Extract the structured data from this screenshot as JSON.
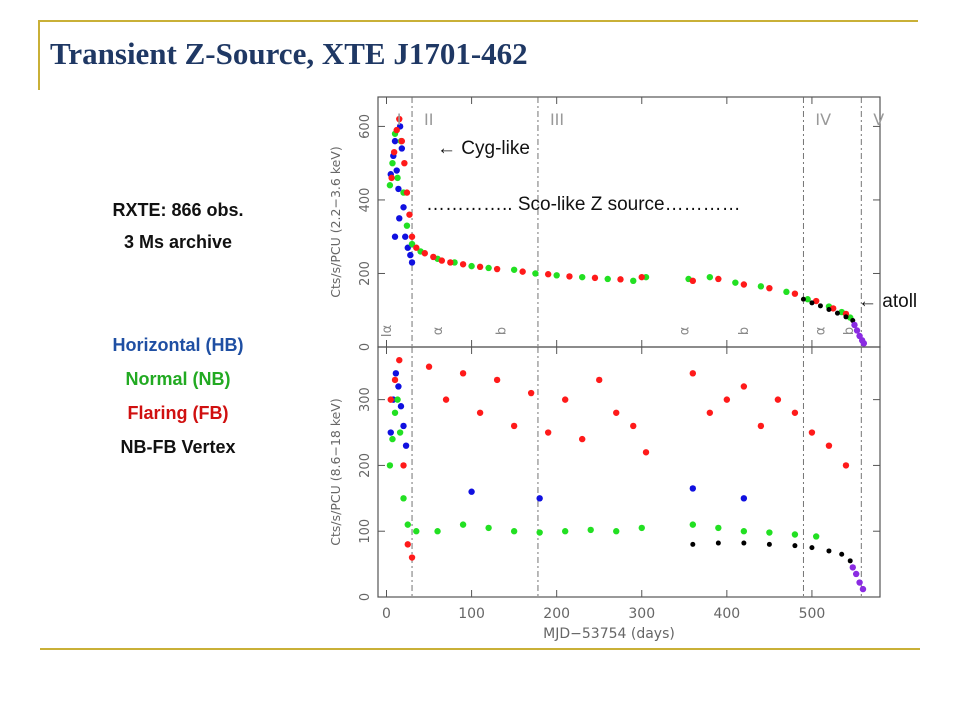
{
  "slide": {
    "title": "Transient Z-Source, XTE J1701-462",
    "obs_line": "RXTE:  866 obs.",
    "archive_line": "3 Ms archive",
    "legend": [
      {
        "label": "Horizontal (HB)",
        "color": "#1f4fa3"
      },
      {
        "label": "Normal (NB)",
        "color": "#22aa22"
      },
      {
        "label": "Flaring (FB)",
        "color": "#d01010"
      },
      {
        "label": "NB-FB Vertex",
        "color": "#111111"
      }
    ],
    "annotations": {
      "cyg": "← Cyg-like",
      "sco": "………….. Sco-like Z source…………",
      "atoll": "← atoll"
    }
  },
  "chart_data": {
    "type": "scatter",
    "xlabel": "MJD−53754 (days)",
    "xlim": [
      -10,
      580
    ],
    "xticks": [
      0,
      100,
      200,
      300,
      400,
      500
    ],
    "epoch_lines": [
      30,
      178,
      490,
      558
    ],
    "epoch_labels": [
      "I",
      "II",
      "III",
      "IV",
      "V"
    ],
    "marker_labels": [
      {
        "x": 5,
        "label": "Iα"
      },
      {
        "x": 65,
        "label": "α"
      },
      {
        "x": 140,
        "label": "b"
      },
      {
        "x": 355,
        "label": "α"
      },
      {
        "x": 425,
        "label": "b"
      },
      {
        "x": 515,
        "label": "α"
      },
      {
        "x": 548,
        "label": "b"
      }
    ],
    "state_colors": {
      "HB": "#1010e0",
      "NB": "#22e022",
      "FB": "#ff1a1a",
      "vertex": "#000000",
      "atoll": "#8a2be2"
    },
    "panels": [
      {
        "ylabel": "Cts/s/PCU (2.2−3.6 keV)",
        "ylim": [
          0,
          680
        ],
        "yticks": [
          0,
          200,
          400,
          600
        ],
        "series": [
          {
            "state": "HB",
            "points": [
              [
                5,
                470
              ],
              [
                8,
                520
              ],
              [
                10,
                560
              ],
              [
                12,
                480
              ],
              [
                14,
                430
              ],
              [
                16,
                600
              ],
              [
                18,
                540
              ],
              [
                20,
                380
              ],
              [
                22,
                300
              ],
              [
                25,
                270
              ],
              [
                28,
                250
              ],
              [
                30,
                230
              ],
              [
                10,
                300
              ],
              [
                15,
                350
              ]
            ]
          },
          {
            "state": "NB",
            "points": [
              [
                4,
                440
              ],
              [
                7,
                500
              ],
              [
                10,
                580
              ],
              [
                13,
                460
              ],
              [
                17,
                560
              ],
              [
                20,
                420
              ],
              [
                24,
                330
              ],
              [
                30,
                280
              ],
              [
                40,
                260
              ],
              [
                60,
                240
              ],
              [
                80,
                230
              ],
              [
                100,
                220
              ],
              [
                120,
                215
              ],
              [
                150,
                210
              ],
              [
                175,
                200
              ],
              [
                200,
                195
              ],
              [
                230,
                190
              ],
              [
                260,
                185
              ],
              [
                290,
                180
              ],
              [
                305,
                190
              ],
              [
                355,
                185
              ],
              [
                380,
                190
              ],
              [
                410,
                175
              ],
              [
                440,
                165
              ],
              [
                470,
                150
              ],
              [
                495,
                130
              ],
              [
                520,
                110
              ],
              [
                535,
                95
              ],
              [
                545,
                80
              ]
            ]
          },
          {
            "state": "FB",
            "points": [
              [
                6,
                460
              ],
              [
                9,
                530
              ],
              [
                12,
                590
              ],
              [
                15,
                620
              ],
              [
                18,
                560
              ],
              [
                21,
                500
              ],
              [
                24,
                420
              ],
              [
                27,
                360
              ],
              [
                30,
                300
              ],
              [
                35,
                270
              ],
              [
                45,
                255
              ],
              [
                55,
                245
              ],
              [
                65,
                235
              ],
              [
                75,
                230
              ],
              [
                90,
                225
              ],
              [
                110,
                218
              ],
              [
                130,
                212
              ],
              [
                160,
                205
              ],
              [
                190,
                198
              ],
              [
                215,
                192
              ],
              [
                245,
                188
              ],
              [
                275,
                184
              ],
              [
                300,
                190
              ],
              [
                360,
                180
              ],
              [
                390,
                185
              ],
              [
                420,
                170
              ],
              [
                450,
                160
              ],
              [
                480,
                145
              ],
              [
                505,
                125
              ],
              [
                525,
                105
              ],
              [
                540,
                90
              ]
            ]
          },
          {
            "state": "vertex",
            "points": [
              [
                490,
                130
              ],
              [
                500,
                120
              ],
              [
                510,
                112
              ],
              [
                520,
                102
              ],
              [
                530,
                92
              ],
              [
                540,
                82
              ],
              [
                548,
                72
              ]
            ]
          },
          {
            "state": "atoll",
            "points": [
              [
                550,
                60
              ],
              [
                553,
                45
              ],
              [
                556,
                30
              ],
              [
                559,
                18
              ],
              [
                561,
                10
              ]
            ]
          }
        ]
      },
      {
        "ylabel": "Cts/s/PCU (8.6−18 keV)",
        "ylim": [
          0,
          380
        ],
        "yticks": [
          0,
          100,
          200,
          300
        ],
        "series": [
          {
            "state": "HB",
            "points": [
              [
                5,
                250
              ],
              [
                8,
                300
              ],
              [
                11,
                340
              ],
              [
                14,
                320
              ],
              [
                17,
                290
              ],
              [
                20,
                260
              ],
              [
                23,
                230
              ],
              [
                100,
                160
              ],
              [
                180,
                150
              ],
              [
                360,
                165
              ],
              [
                420,
                150
              ]
            ]
          },
          {
            "state": "NB",
            "points": [
              [
                4,
                200
              ],
              [
                7,
                240
              ],
              [
                10,
                280
              ],
              [
                13,
                300
              ],
              [
                16,
                250
              ],
              [
                20,
                150
              ],
              [
                25,
                110
              ],
              [
                35,
                100
              ],
              [
                60,
                100
              ],
              [
                90,
                110
              ],
              [
                120,
                105
              ],
              [
                150,
                100
              ],
              [
                180,
                98
              ],
              [
                210,
                100
              ],
              [
                240,
                102
              ],
              [
                270,
                100
              ],
              [
                300,
                105
              ],
              [
                360,
                110
              ],
              [
                390,
                105
              ],
              [
                420,
                100
              ],
              [
                450,
                98
              ],
              [
                480,
                95
              ],
              [
                505,
                92
              ]
            ]
          },
          {
            "state": "FB",
            "points": [
              [
                5,
                300
              ],
              [
                10,
                330
              ],
              [
                15,
                360
              ],
              [
                20,
                200
              ],
              [
                25,
                80
              ],
              [
                30,
                60
              ],
              [
                50,
                350
              ],
              [
                70,
                300
              ],
              [
                90,
                340
              ],
              [
                110,
                280
              ],
              [
                130,
                330
              ],
              [
                150,
                260
              ],
              [
                170,
                310
              ],
              [
                190,
                250
              ],
              [
                210,
                300
              ],
              [
                230,
                240
              ],
              [
                250,
                330
              ],
              [
                270,
                280
              ],
              [
                290,
                260
              ],
              [
                305,
                220
              ],
              [
                360,
                340
              ],
              [
                380,
                280
              ],
              [
                400,
                300
              ],
              [
                420,
                320
              ],
              [
                440,
                260
              ],
              [
                460,
                300
              ],
              [
                480,
                280
              ],
              [
                500,
                250
              ],
              [
                520,
                230
              ],
              [
                540,
                200
              ]
            ]
          },
          {
            "state": "vertex",
            "points": [
              [
                360,
                80
              ],
              [
                390,
                82
              ],
              [
                420,
                82
              ],
              [
                450,
                80
              ],
              [
                480,
                78
              ],
              [
                500,
                75
              ],
              [
                520,
                70
              ],
              [
                535,
                65
              ],
              [
                545,
                55
              ]
            ]
          },
          {
            "state": "atoll",
            "points": [
              [
                548,
                45
              ],
              [
                552,
                35
              ],
              [
                556,
                22
              ],
              [
                560,
                12
              ]
            ]
          }
        ]
      }
    ]
  }
}
